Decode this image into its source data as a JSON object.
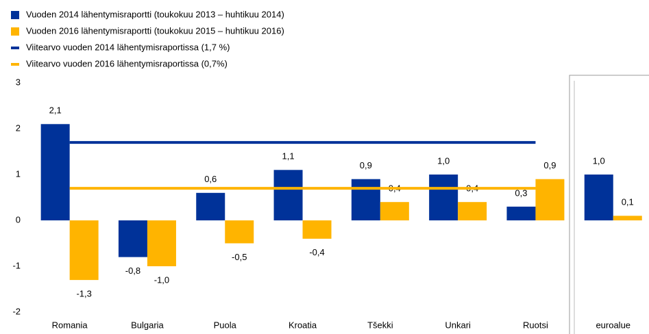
{
  "chart_data": {
    "type": "bar",
    "categories": [
      "Romania",
      "Bulgaria",
      "Puola",
      "Kroatia",
      "Tšekki",
      "Unkari",
      "Ruotsi",
      "euroalue"
    ],
    "series": [
      {
        "name": "Vuoden 2014 lähentymisraportti (toukokuu 2013 – huhtikuu 2014)",
        "color": "#003299",
        "values": [
          2.1,
          -0.8,
          0.6,
          1.1,
          0.9,
          1.0,
          0.3,
          1.0
        ],
        "value_labels": [
          "2,1",
          "-0,8",
          "0,6",
          "1,1",
          "0,9",
          "1,0",
          "0,3",
          "1,0"
        ]
      },
      {
        "name": "Vuoden 2016 lähentymisraportti (toukokuu 2015 – huhtikuu 2016)",
        "color": "#ffb400",
        "values": [
          -1.3,
          -1.0,
          -0.5,
          -0.4,
          0.4,
          0.4,
          0.9,
          0.1
        ],
        "value_labels": [
          "-1,3",
          "-1,0",
          "-0,5",
          "-0,4",
          "0,4",
          "0,4",
          "0,9",
          "0,1"
        ]
      }
    ],
    "reference_lines": [
      {
        "name": "Viitearvo vuoden 2014 lähentymisraportissa (1,7 %)",
        "color": "#003299",
        "value": 1.7
      },
      {
        "name": "Viitearvo vuoden 2016 lähentymisraportissa (0,7%)",
        "color": "#ffb400",
        "value": 0.7
      }
    ],
    "ylim": [
      -2,
      3
    ],
    "yticks": [
      -2,
      -1,
      0,
      1,
      2,
      3
    ]
  }
}
